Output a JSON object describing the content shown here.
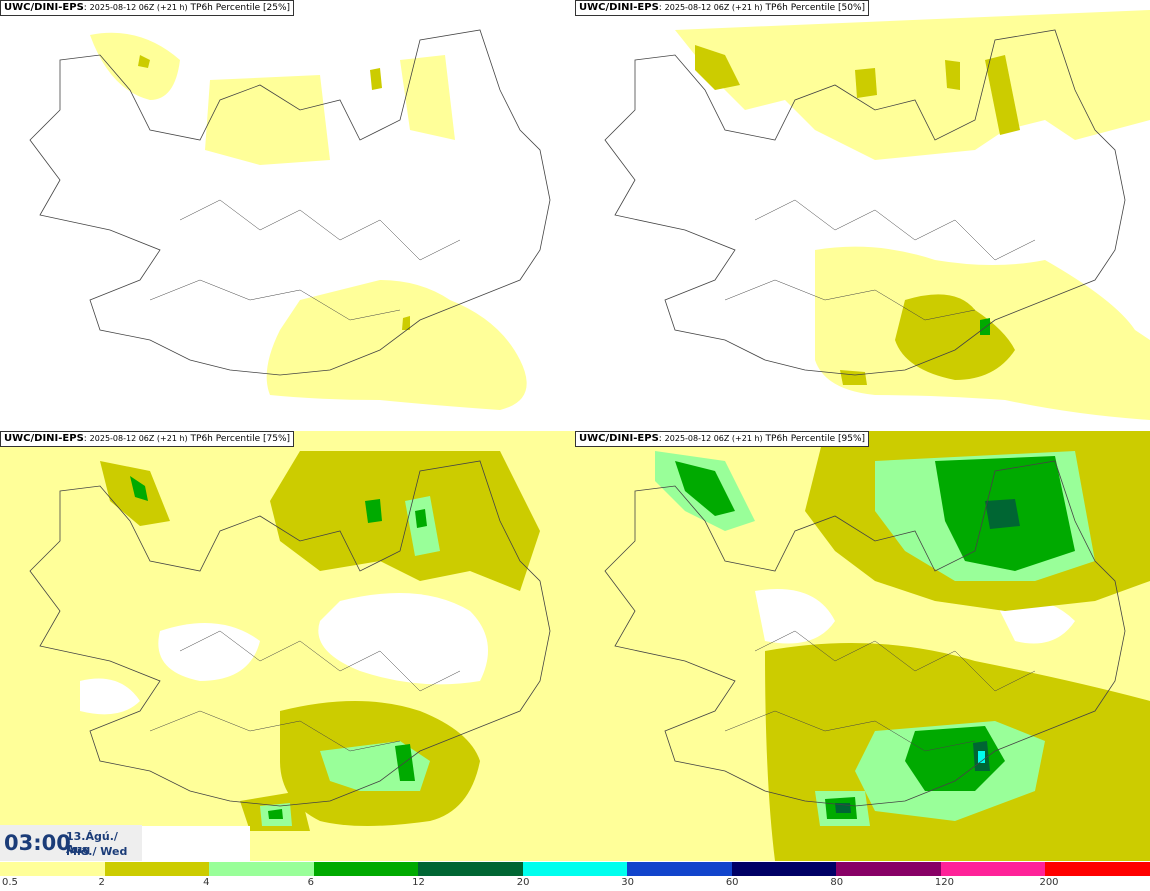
{
  "panels": [
    {
      "model": "UWC/DINI-EPS",
      "run": "2025-08-12 06Z (+21 h)",
      "variable": "TP6h Percentile",
      "percentile": "[25%]"
    },
    {
      "model": "UWC/DINI-EPS",
      "run": "2025-08-12 06Z (+21 h)",
      "variable": "TP6h Percentile",
      "percentile": "[50%]"
    },
    {
      "model": "UWC/DINI-EPS",
      "run": "2025-08-12 06Z (+21 h)",
      "variable": "TP6h Percentile",
      "percentile": "[75%]"
    },
    {
      "model": "UWC/DINI-EPS",
      "run": "2025-08-12 06Z (+21 h)",
      "variable": "TP6h Percentile",
      "percentile": "[95%]"
    }
  ],
  "time": {
    "clock": "03:00",
    "date_line": "13.Ágú./ Aug",
    "day_line": "Mið./ Wed"
  },
  "legend": {
    "colors": [
      "#ffff99",
      "#cccc00",
      "#99ff99",
      "#00aa00",
      "#006633",
      "#00ffee",
      "#1144cc",
      "#000066",
      "#880066",
      "#ff2299",
      "#ff0000"
    ],
    "labels": [
      "0.5",
      "2",
      "4",
      "6",
      "12",
      "20",
      "30",
      "60",
      "80",
      "120",
      "200"
    ]
  }
}
